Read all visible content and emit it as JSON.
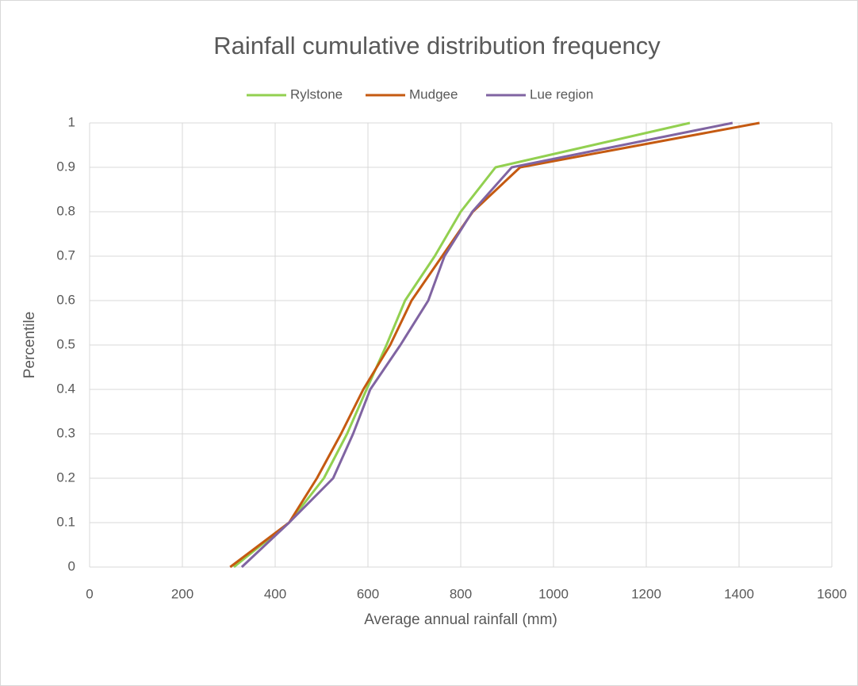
{
  "chart_data": {
    "type": "line",
    "title": "Rainfall cumulative distribution frequency",
    "x_label": "Average annual rainfall (mm)",
    "y_label": "Percentile",
    "xlim": [
      0,
      1600
    ],
    "xticks": [
      0,
      200,
      400,
      600,
      800,
      1000,
      1200,
      1400,
      1600
    ],
    "ylim": [
      0,
      1
    ],
    "yticks": [
      0,
      0.1,
      0.2,
      0.3,
      0.4,
      0.5,
      0.6,
      0.7,
      0.8,
      0.9,
      1
    ],
    "grid": true,
    "legend": "top",
    "series": [
      {
        "name": "Rylstone",
        "color": "#92d050",
        "x": [
          311,
          430,
          505,
          555,
          597,
          640,
          680,
          744,
          800,
          875,
          1294
        ],
        "values": [
          0,
          0.1,
          0.2,
          0.3,
          0.4,
          0.5,
          0.6,
          0.7,
          0.8,
          0.9,
          1
        ]
      },
      {
        "name": "Mudgee",
        "color": "#c55a11",
        "x": [
          303,
          430,
          490,
          542,
          590,
          648,
          694,
          760,
          826,
          928,
          1444
        ],
        "values": [
          0,
          0.1,
          0.2,
          0.3,
          0.4,
          0.5,
          0.6,
          0.7,
          0.8,
          0.9,
          1
        ]
      },
      {
        "name": "Lue region",
        "color": "#8064a2",
        "x": [
          328,
          430,
          525,
          568,
          605,
          670,
          730,
          765,
          825,
          910,
          1386
        ],
        "values": [
          0,
          0.1,
          0.2,
          0.3,
          0.4,
          0.5,
          0.6,
          0.7,
          0.8,
          0.9,
          1
        ]
      }
    ]
  }
}
